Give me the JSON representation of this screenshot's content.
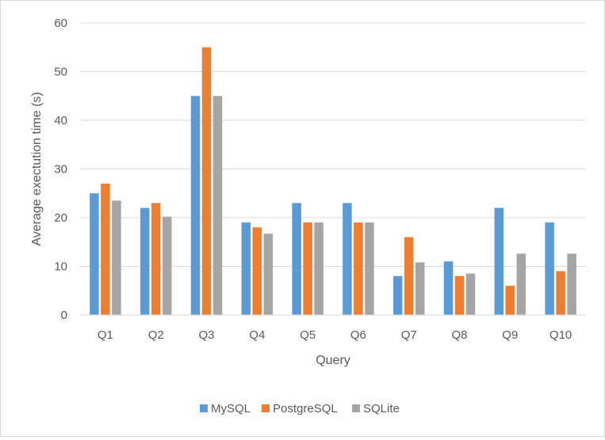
{
  "chart_data": {
    "type": "bar",
    "title": "",
    "xlabel": "Query",
    "ylabel": "Average exectution time (s)",
    "ylim": [
      0,
      60
    ],
    "yticks": [
      0,
      10,
      20,
      30,
      40,
      50,
      60
    ],
    "grid": true,
    "legend_position": "bottom",
    "categories": [
      "Q1",
      "Q2",
      "Q3",
      "Q4",
      "Q5",
      "Q6",
      "Q7",
      "Q8",
      "Q9",
      "Q10"
    ],
    "series": [
      {
        "name": "MySQL",
        "color": "#5b9bd5",
        "values": [
          25,
          22,
          45,
          19,
          23,
          23,
          8,
          11,
          22,
          19
        ]
      },
      {
        "name": "PostgreSQL",
        "color": "#ed7d31",
        "values": [
          27,
          23,
          55,
          18,
          19,
          19,
          16,
          8,
          6,
          9
        ]
      },
      {
        "name": "SQLite",
        "color": "#a5a5a5",
        "values": [
          23.5,
          20.2,
          45,
          16.7,
          19,
          19,
          10.8,
          8.5,
          12.6,
          12.6
        ]
      }
    ]
  }
}
